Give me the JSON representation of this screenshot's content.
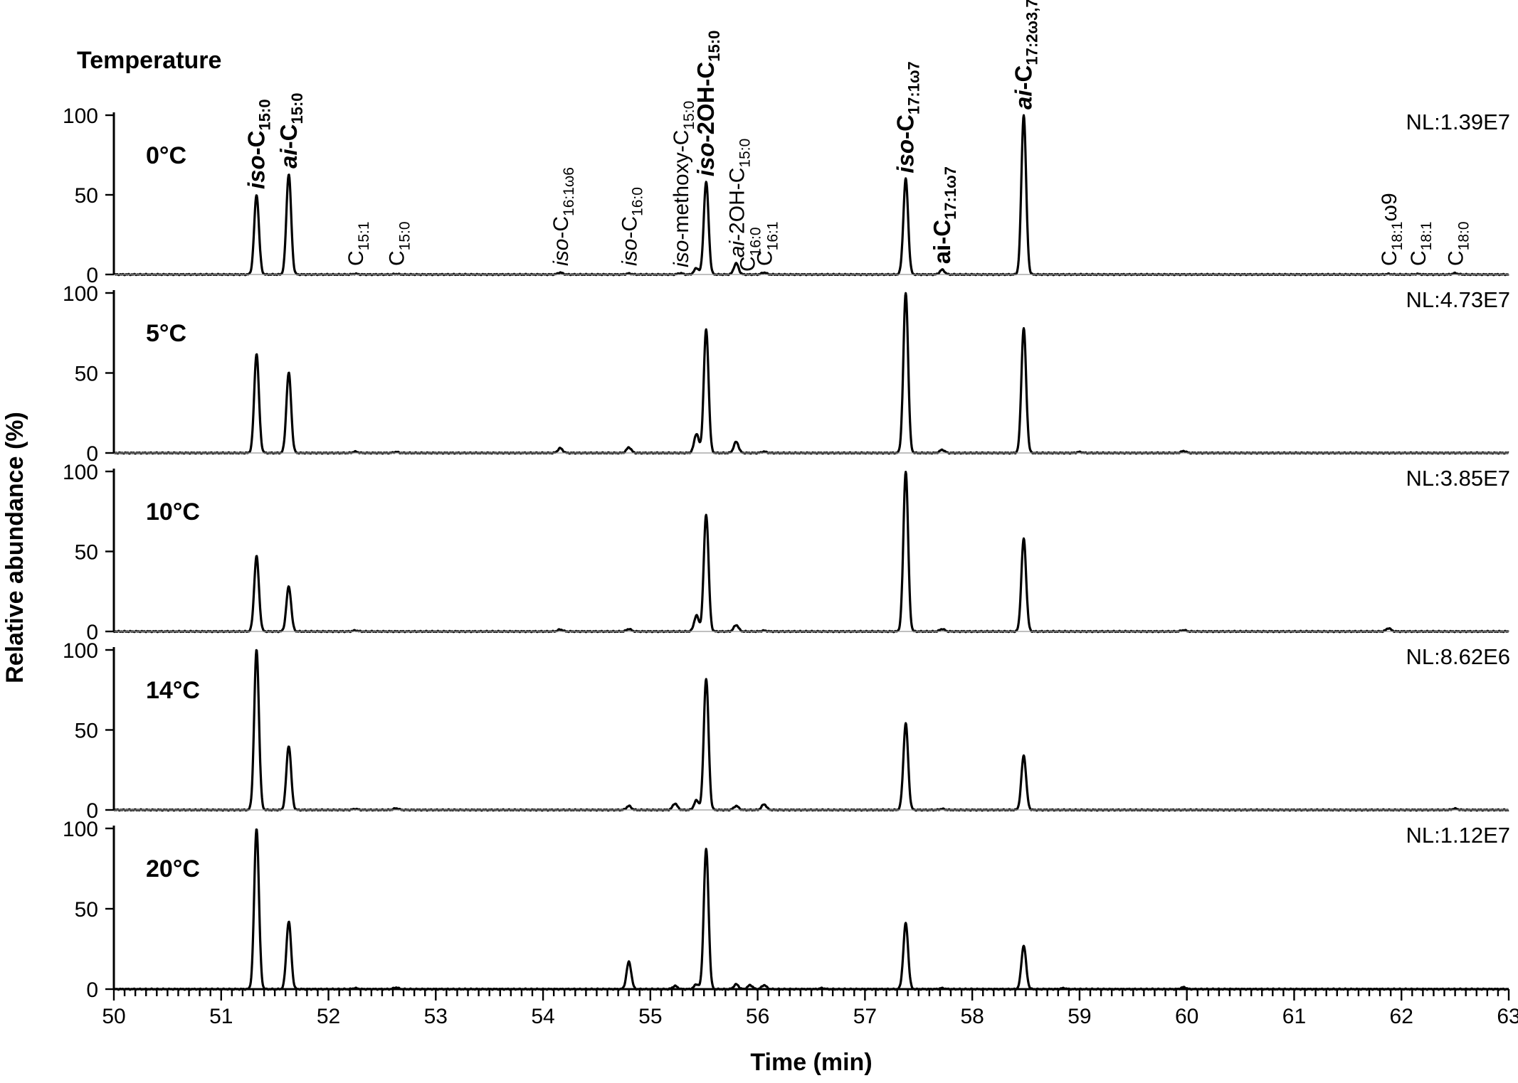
{
  "chart_data": {
    "type": "line",
    "legend_title": "Temperature",
    "xlabel": "Time (min)",
    "ylabel": "Relative abundance (%)",
    "xlim": [
      50,
      63
    ],
    "ylim": [
      0,
      100
    ],
    "x_ticks": [
      "50",
      "51",
      "52",
      "53",
      "54",
      "55",
      "56",
      "57",
      "58",
      "59",
      "60",
      "61",
      "62",
      "63"
    ],
    "y_ticks": [
      "0",
      "50",
      "100"
    ],
    "grid": false,
    "peak_labels": [
      {
        "rt": 51.33,
        "prefix": "iso",
        "sep": "-",
        "base": "C",
        "sub": "15:0",
        "bold": true,
        "italic_prefix": true
      },
      {
        "rt": 51.63,
        "prefix": "ai",
        "sep": "-",
        "base": "C",
        "sub": "15:0",
        "bold": true,
        "italic_prefix": true
      },
      {
        "rt": 52.25,
        "prefix": "",
        "sep": "",
        "base": "C",
        "sub": "15:1",
        "bold": false,
        "italic_prefix": false
      },
      {
        "rt": 52.63,
        "prefix": "",
        "sep": "",
        "base": "C",
        "sub": "15:0",
        "bold": false,
        "italic_prefix": false
      },
      {
        "rt": 54.16,
        "prefix": "iso",
        "sep": "-",
        "base": "C",
        "sub": "16:1ω6",
        "bold": false,
        "italic_prefix": true
      },
      {
        "rt": 54.8,
        "prefix": "iso",
        "sep": "-",
        "base": "C",
        "sub": "16:0",
        "bold": false,
        "italic_prefix": true
      },
      {
        "rt": 55.28,
        "prefix": "iso",
        "sep": "-methoxy-",
        "base": "C",
        "sub": "15:0",
        "bold": false,
        "italic_prefix": true
      },
      {
        "rt": 55.52,
        "prefix": "iso",
        "sep": "-2OH-",
        "base": "C",
        "sub": "15:0",
        "bold": true,
        "italic_prefix": true
      },
      {
        "rt": 55.8,
        "prefix": "ai",
        "sep": "-2OH-",
        "base": "C",
        "sub": "15:0",
        "bold": false,
        "italic_prefix": true
      },
      {
        "rt": 55.9,
        "prefix": "",
        "sep": "",
        "base": "C",
        "sub": "16:0",
        "bold": false,
        "italic_prefix": false
      },
      {
        "rt": 56.06,
        "prefix": "",
        "sep": "",
        "base": "C",
        "sub": "16:1",
        "bold": false,
        "italic_prefix": false
      },
      {
        "rt": 57.38,
        "prefix": "iso",
        "sep": "-",
        "base": "C",
        "sub": "17:1ω7",
        "bold": true,
        "italic_prefix": true
      },
      {
        "rt": 57.72,
        "prefix": "ai",
        "sep": "-",
        "base": "C",
        "sub": "17:1ω7",
        "bold": true,
        "italic_prefix": false
      },
      {
        "rt": 58.48,
        "prefix": "ai",
        "sep": "-",
        "base": "C",
        "sub": "17:2ω3,7",
        "bold": true,
        "italic_prefix": true
      },
      {
        "rt": 61.88,
        "prefix": "",
        "sep": "",
        "base": "C",
        "sub": "18:1",
        "tail": "ω9",
        "bold": false,
        "italic_prefix": false
      },
      {
        "rt": 62.15,
        "prefix": "",
        "sep": "",
        "base": "C",
        "sub": "18:1",
        "bold": false,
        "italic_prefix": false
      },
      {
        "rt": 62.5,
        "prefix": "",
        "sep": "",
        "base": "C",
        "sub": "18:0",
        "bold": false,
        "italic_prefix": false
      }
    ],
    "series": [
      {
        "name": "0°C",
        "normalization": "NL:1.39E7",
        "peaks": [
          [
            51.33,
            50
          ],
          [
            51.63,
            63
          ],
          [
            52.25,
            0.4
          ],
          [
            52.63,
            0.3
          ],
          [
            54.16,
            1.2
          ],
          [
            54.8,
            0.6
          ],
          [
            55.28,
            0.8
          ],
          [
            55.43,
            4
          ],
          [
            55.52,
            58
          ],
          [
            55.8,
            7
          ],
          [
            56.06,
            1.2
          ],
          [
            57.38,
            60
          ],
          [
            57.72,
            3
          ],
          [
            58.48,
            100
          ],
          [
            61.88,
            0.3
          ],
          [
            62.15,
            0.3
          ],
          [
            62.5,
            0.8
          ]
        ]
      },
      {
        "name": "5°C",
        "normalization": "NL:4.73E7",
        "peaks": [
          [
            51.33,
            62
          ],
          [
            51.63,
            50
          ],
          [
            52.25,
            0.8
          ],
          [
            52.63,
            0.6
          ],
          [
            54.16,
            3
          ],
          [
            54.8,
            3.5
          ],
          [
            55.43,
            12
          ],
          [
            55.52,
            77
          ],
          [
            55.8,
            7
          ],
          [
            56.06,
            0.8
          ],
          [
            57.38,
            100
          ],
          [
            57.72,
            2
          ],
          [
            58.48,
            78
          ],
          [
            59.0,
            0.6
          ],
          [
            59.97,
            1.2
          ]
        ]
      },
      {
        "name": "10°C",
        "normalization": "NL:3.85E7",
        "peaks": [
          [
            51.33,
            47
          ],
          [
            51.63,
            28
          ],
          [
            52.25,
            0.6
          ],
          [
            54.16,
            1.2
          ],
          [
            54.8,
            1.5
          ],
          [
            55.43,
            10
          ],
          [
            55.52,
            73
          ],
          [
            55.8,
            4
          ],
          [
            56.06,
            0.5
          ],
          [
            57.38,
            100
          ],
          [
            57.72,
            1.5
          ],
          [
            58.48,
            58
          ],
          [
            59.97,
            0.8
          ],
          [
            61.88,
            2
          ]
        ]
      },
      {
        "name": "14°C",
        "normalization": "NL:8.62E6",
        "peaks": [
          [
            51.33,
            100
          ],
          [
            51.63,
            40
          ],
          [
            52.25,
            0.6
          ],
          [
            52.63,
            1
          ],
          [
            54.8,
            2.5
          ],
          [
            55.23,
            4
          ],
          [
            55.43,
            6
          ],
          [
            55.52,
            82
          ],
          [
            55.8,
            2.5
          ],
          [
            56.06,
            3.5
          ],
          [
            57.38,
            54
          ],
          [
            57.72,
            0.6
          ],
          [
            58.48,
            34
          ],
          [
            62.5,
            0.8
          ]
        ]
      },
      {
        "name": "20°C",
        "normalization": "NL:1.12E7",
        "peaks": [
          [
            51.33,
            100
          ],
          [
            51.63,
            42
          ],
          [
            52.25,
            0.6
          ],
          [
            52.63,
            1
          ],
          [
            54.8,
            17
          ],
          [
            55.23,
            2
          ],
          [
            55.43,
            3
          ],
          [
            55.52,
            87
          ],
          [
            55.8,
            3
          ],
          [
            55.93,
            2.5
          ],
          [
            56.06,
            2.5
          ],
          [
            56.6,
            0.6
          ],
          [
            57.38,
            41
          ],
          [
            57.72,
            0.6
          ],
          [
            58.48,
            27
          ],
          [
            58.85,
            0.6
          ],
          [
            59.97,
            1.2
          ]
        ]
      }
    ]
  }
}
